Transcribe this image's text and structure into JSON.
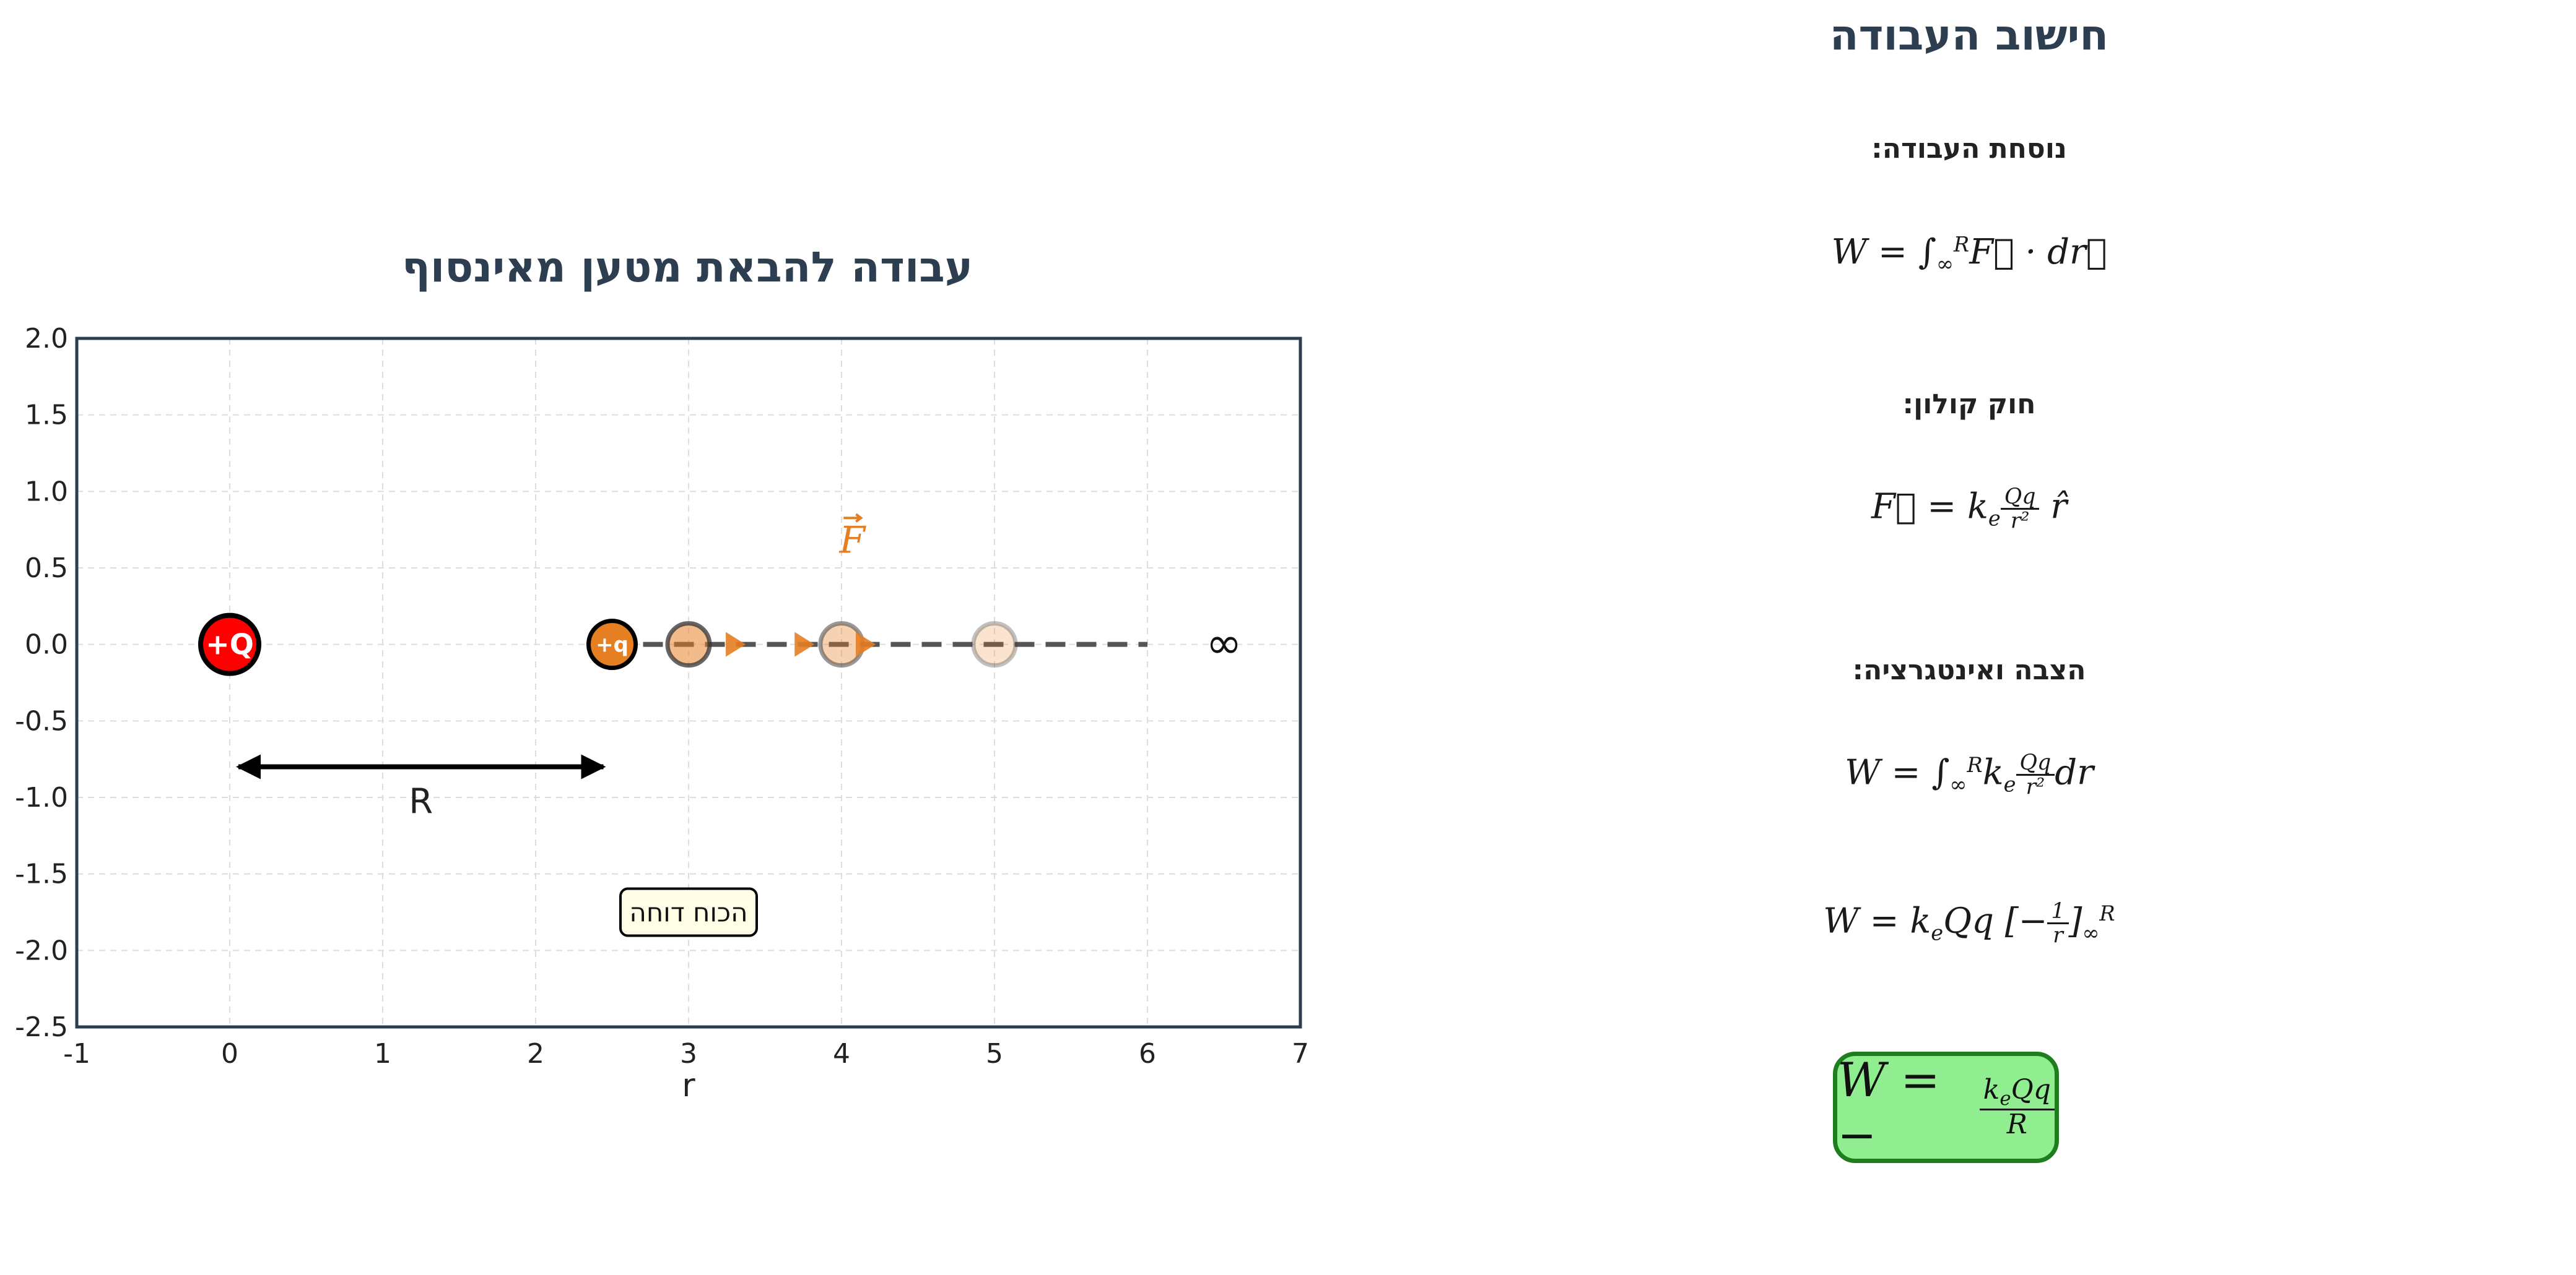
{
  "plot": {
    "title": "עבודה להבאת מטען מאינסוף",
    "xlabel": "r",
    "charge_source_label": "+Q",
    "charge_test_label": "+q",
    "distance_label": "R",
    "infinity_label": "∞",
    "force_label": "F",
    "repel_note": "הכוח דוחה",
    "x_ticks": [
      "-1",
      "0",
      "1",
      "2",
      "3",
      "4",
      "5",
      "6",
      "7"
    ],
    "y_ticks": [
      "2.0",
      "1.5",
      "1.0",
      "0.5",
      "0.0",
      "-0.5",
      "-1.0",
      "-1.5",
      "-2.0",
      "-2.5"
    ]
  },
  "chart_data": {
    "type": "scatter",
    "title": "עבודה להבאת מטען מאינסוף",
    "xlabel": "r",
    "ylabel": "",
    "xlim": [
      -1,
      7
    ],
    "ylim": [
      -2.5,
      2.0
    ],
    "grid": true,
    "source_charge": {
      "label": "+Q",
      "x": 0,
      "y": 0,
      "color": "#ff0000"
    },
    "test_charge": {
      "label": "+q",
      "x": 2.5,
      "y": 0,
      "color": "#e67e22"
    },
    "path_positions": [
      {
        "x": 3,
        "y": 0,
        "opacity": 0.75
      },
      {
        "x": 4,
        "y": 0,
        "opacity": 0.5
      },
      {
        "x": 5,
        "y": 0,
        "opacity": 0.3
      }
    ],
    "path_line": {
      "x_start": 2.5,
      "x_end": 6,
      "y": 0,
      "style": "dashed"
    },
    "force_arrows_x": [
      3.3,
      3.75,
      4.15
    ],
    "distance_arrow": {
      "x_start": 0,
      "x_end": 2.5,
      "y": -0.8,
      "label": "R"
    },
    "infinity_marker": {
      "x": 6.5,
      "y": 0,
      "label": "∞"
    },
    "force_label_position": {
      "x": 4.07,
      "y": 0.6
    },
    "repel_note_position": {
      "x": 3,
      "y": -1.75
    }
  },
  "panel": {
    "title": "חישוב העבודה",
    "work_formula_label": "נוסחת העבודה:",
    "coulomb_label": "חוק קולון:",
    "substitution_label": "הצבה ואינטגרציה:",
    "result": "W = −keQq / R"
  },
  "colors": {
    "title": "#2c3e50",
    "source_charge": "#ff0000",
    "test_charge": "#e67e22",
    "result_fill": "#90ee90",
    "result_border": "#1e7d1e",
    "note_fill": "#fffde6"
  }
}
